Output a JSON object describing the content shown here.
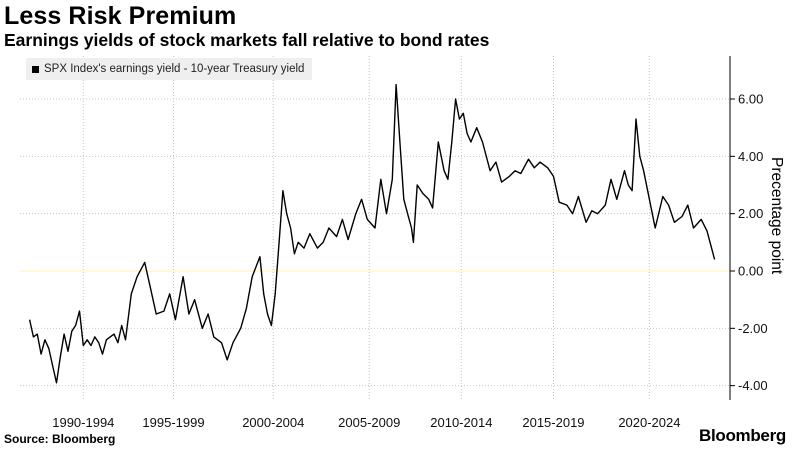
{
  "header": {
    "title": "Less Risk Premium",
    "subtitle": "Earnings yields of stock markets fall relative to bond rates"
  },
  "footer": {
    "source": "Source: Bloomberg",
    "brand": "Bloomberg"
  },
  "colors": {
    "line": "#000000",
    "grid": "#c8c8c8",
    "zero_line": "#fff3b0",
    "legend_bg": "#efefef"
  },
  "chart_data": {
    "type": "line",
    "title": "Less Risk Premium",
    "subtitle": "Earnings yields of stock markets fall relative to bond rates",
    "ylabel": "Precentage point",
    "legend_position": "top-left",
    "grid": true,
    "ylim": [
      -4.5,
      7.5
    ],
    "xlim": [
      1988.5,
      2025.5
    ],
    "y_ticks": [
      6,
      4,
      2,
      0,
      -2,
      -4
    ],
    "y_tick_labels": [
      "6.00",
      "4.00",
      "2.00",
      "0.00",
      "-2.00",
      "-4.00"
    ],
    "x_tick_labels": [
      "1990-1994",
      "1995-1999",
      "2000-2004",
      "2005-2009",
      "2010-2014",
      "2015-2019",
      "2020-2024"
    ],
    "x_tick_positions": [
      1991.8,
      1996.5,
      2001.7,
      2006.7,
      2011.5,
      2016.3,
      2021.3
    ],
    "series": [
      {
        "name": "SPX Index's earnings yield - 10-year Treasury yield",
        "x": [
          1989.0,
          1989.2,
          1989.4,
          1989.6,
          1989.8,
          1990.0,
          1990.2,
          1990.4,
          1990.6,
          1990.8,
          1991.0,
          1991.2,
          1991.4,
          1991.6,
          1991.8,
          1992.0,
          1992.2,
          1992.4,
          1992.6,
          1992.8,
          1993.0,
          1993.2,
          1993.4,
          1993.6,
          1993.8,
          1994.0,
          1994.3,
          1994.6,
          1995.0,
          1995.3,
          1995.6,
          1996.0,
          1996.3,
          1996.6,
          1997.0,
          1997.3,
          1997.6,
          1998.0,
          1998.3,
          1998.6,
          1999.0,
          1999.3,
          1999.6,
          2000.0,
          2000.3,
          2000.6,
          2001.0,
          2001.2,
          2001.4,
          2001.6,
          2001.8,
          2002.0,
          2002.2,
          2002.4,
          2002.6,
          2002.8,
          2003.0,
          2003.3,
          2003.6,
          2004.0,
          2004.3,
          2004.6,
          2005.0,
          2005.3,
          2005.6,
          2006.0,
          2006.3,
          2006.6,
          2007.0,
          2007.3,
          2007.6,
          2007.9,
          2008.1,
          2008.3,
          2008.5,
          2008.7,
          2008.9,
          2009.0,
          2009.2,
          2009.5,
          2009.8,
          2010.0,
          2010.3,
          2010.6,
          2010.8,
          2011.0,
          2011.2,
          2011.4,
          2011.6,
          2011.8,
          2012.0,
          2012.3,
          2012.6,
          2013.0,
          2013.3,
          2013.6,
          2014.0,
          2014.3,
          2014.6,
          2015.0,
          2015.3,
          2015.6,
          2016.0,
          2016.3,
          2016.6,
          2017.0,
          2017.3,
          2017.6,
          2018.0,
          2018.3,
          2018.6,
          2019.0,
          2019.3,
          2019.6,
          2020.0,
          2020.2,
          2020.4,
          2020.6,
          2020.8,
          2021.0,
          2021.3,
          2021.6,
          2022.0,
          2022.3,
          2022.6,
          2023.0,
          2023.3,
          2023.6,
          2024.0,
          2024.3,
          2024.5,
          2024.7
        ],
        "values": [
          -1.7,
          -2.3,
          -2.2,
          -2.9,
          -2.4,
          -2.7,
          -3.3,
          -3.9,
          -3.0,
          -2.2,
          -2.8,
          -2.1,
          -1.9,
          -1.4,
          -2.6,
          -2.4,
          -2.6,
          -2.3,
          -2.5,
          -2.9,
          -2.4,
          -2.3,
          -2.2,
          -2.5,
          -1.9,
          -2.4,
          -0.8,
          -0.2,
          0.3,
          -0.6,
          -1.5,
          -1.4,
          -0.8,
          -1.7,
          -0.2,
          -1.5,
          -1.0,
          -2.0,
          -1.5,
          -2.3,
          -2.5,
          -3.1,
          -2.5,
          -2.0,
          -1.3,
          -0.2,
          0.5,
          -0.8,
          -1.5,
          -1.9,
          -0.8,
          1.0,
          2.8,
          2.0,
          1.5,
          0.6,
          1.0,
          0.8,
          1.3,
          0.8,
          1.0,
          1.5,
          1.2,
          1.8,
          1.1,
          2.0,
          2.5,
          1.8,
          1.5,
          3.2,
          2.0,
          3.2,
          6.5,
          4.5,
          2.5,
          2.0,
          1.5,
          1.0,
          3.0,
          2.7,
          2.5,
          2.2,
          4.5,
          3.5,
          3.2,
          4.5,
          6.0,
          5.3,
          5.5,
          4.8,
          4.5,
          5.0,
          4.5,
          3.5,
          3.8,
          3.1,
          3.3,
          3.5,
          3.4,
          3.9,
          3.6,
          3.8,
          3.6,
          3.3,
          2.4,
          2.3,
          2.0,
          2.6,
          1.7,
          2.1,
          2.0,
          2.3,
          3.2,
          2.5,
          3.5,
          3.0,
          2.8,
          5.3,
          4.0,
          3.5,
          2.5,
          1.5,
          2.6,
          2.3,
          1.7,
          1.9,
          2.3,
          1.5,
          1.8,
          1.4,
          0.9,
          0.4
        ]
      }
    ]
  }
}
